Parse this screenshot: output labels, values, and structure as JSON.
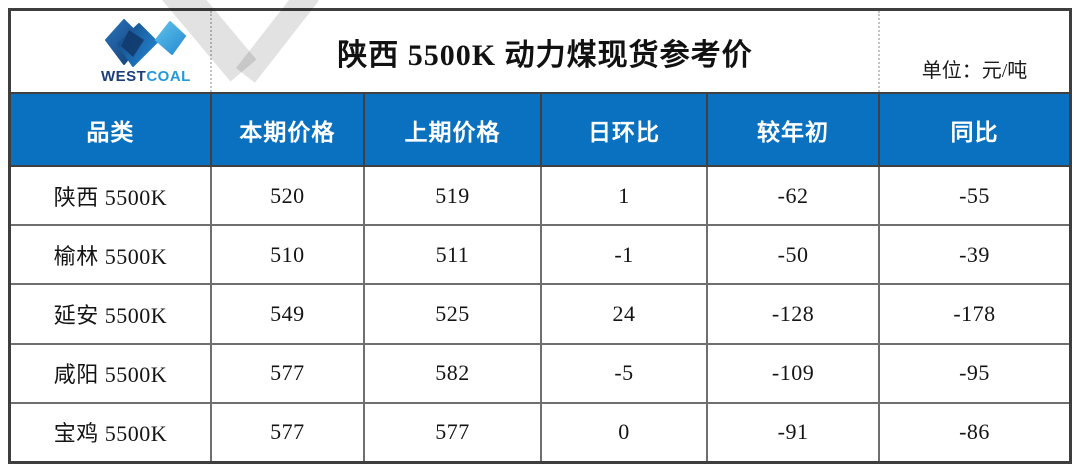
{
  "banner": {
    "title": "陕西 5500K 动力煤现货参考价",
    "unit_label": "单位：元/吨",
    "logo": {
      "text_west": "WEST",
      "text_coal": "COAL"
    }
  },
  "table": {
    "columns": [
      "品类",
      "本期价格",
      "上期价格",
      "日环比",
      "较年初",
      "同比"
    ],
    "rows": [
      [
        "陕西 5500K",
        "520",
        "519",
        "1",
        "-62",
        "-55"
      ],
      [
        "榆林 5500K",
        "510",
        "511",
        "-1",
        "-50",
        "-39"
      ],
      [
        "延安 5500K",
        "549",
        "525",
        "24",
        "-128",
        "-178"
      ],
      [
        "咸阳 5500K",
        "577",
        "582",
        "-5",
        "-109",
        "-95"
      ],
      [
        "宝鸡 5500K",
        "577",
        "577",
        "0",
        "-91",
        "-86"
      ]
    ]
  },
  "chart_data": {
    "type": "table",
    "title": "陕西 5500K 动力煤现货参考价",
    "unit": "元/吨",
    "columns": [
      "品类",
      "本期价格",
      "上期价格",
      "日环比",
      "较年初",
      "同比"
    ],
    "rows": [
      {
        "品类": "陕西 5500K",
        "本期价格": 520,
        "上期价格": 519,
        "日环比": 1,
        "较年初": -62,
        "同比": -55
      },
      {
        "品类": "榆林 5500K",
        "本期价格": 510,
        "上期价格": 511,
        "日环比": -1,
        "较年初": -50,
        "同比": -39
      },
      {
        "品类": "延安 5500K",
        "本期价格": 549,
        "上期价格": 525,
        "日环比": 24,
        "较年初": -128,
        "同比": -178
      },
      {
        "品类": "咸阳 5500K",
        "本期价格": 577,
        "上期价格": 582,
        "日环比": -5,
        "较年初": -109,
        "同比": -95
      },
      {
        "品类": "宝鸡 5500K",
        "本期价格": 577,
        "上期价格": 577,
        "日环比": 0,
        "较年初": -91,
        "同比": -86
      }
    ]
  },
  "colors": {
    "header_blue": "#0a71c1",
    "outer_border": "#3e3e3e",
    "grid_line": "#6f6f6f",
    "logo_navy": "#1c3e7c",
    "logo_blue": "#2180cb",
    "logo_light": "#5fc2ec",
    "coal_text": "#2499da"
  }
}
